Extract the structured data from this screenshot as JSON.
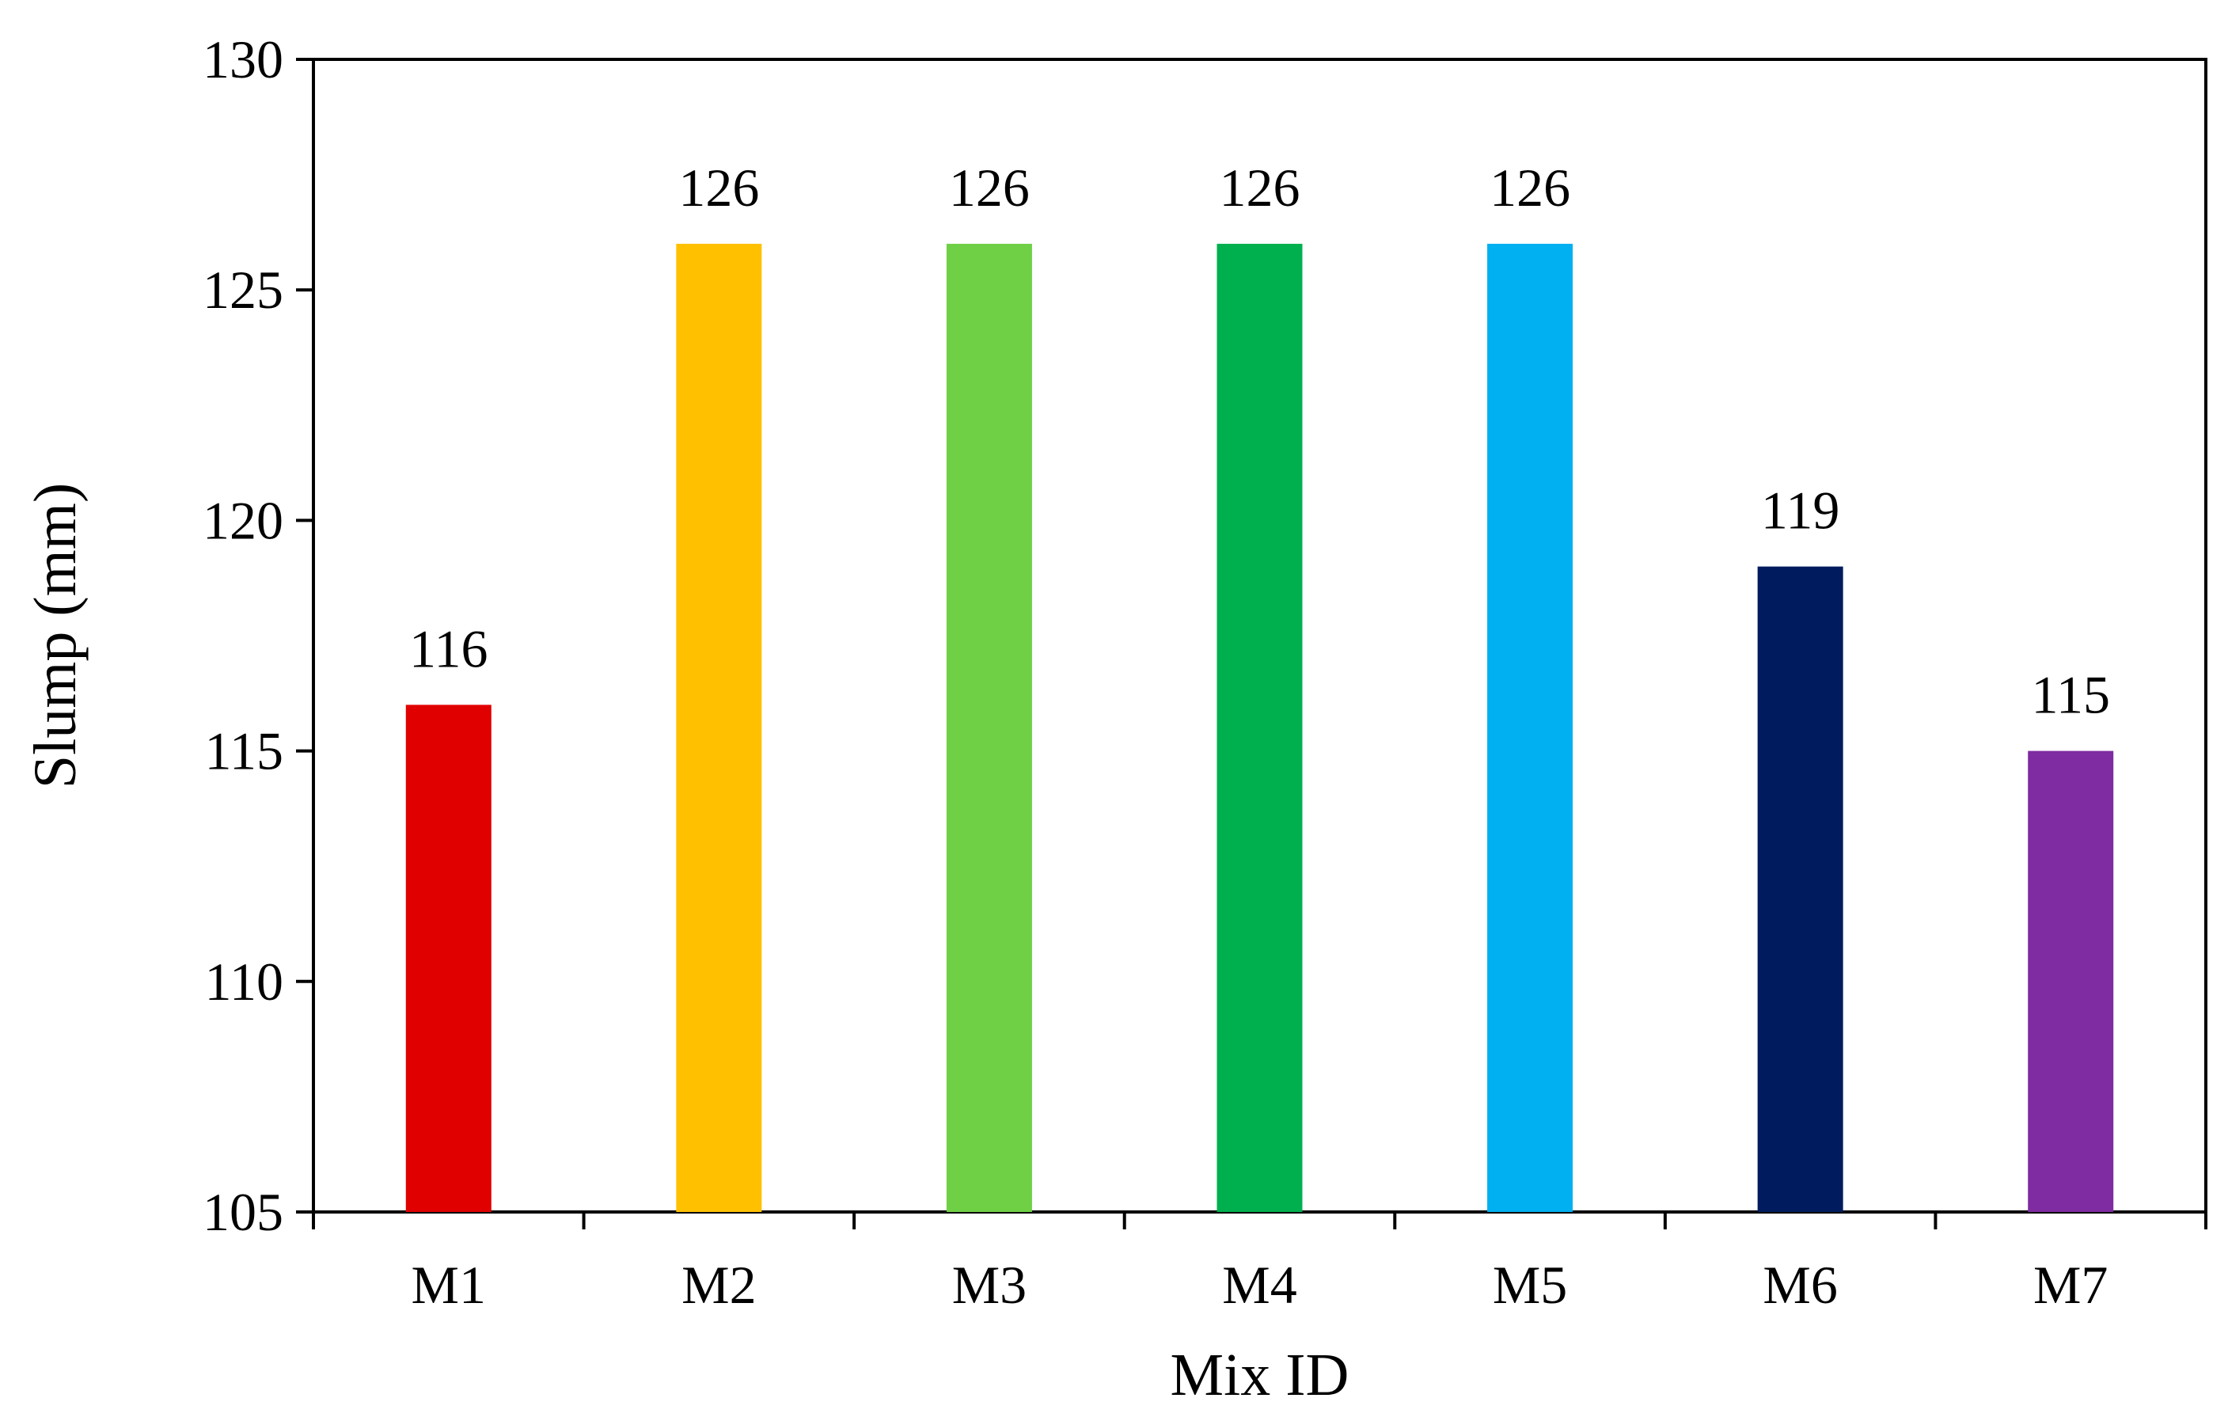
{
  "chart_data": {
    "type": "bar",
    "title": "",
    "xlabel": "Mix ID",
    "ylabel": "Slump (mm)",
    "categories": [
      "M1",
      "M2",
      "M3",
      "M4",
      "M5",
      "M6",
      "M7"
    ],
    "values": [
      116,
      126,
      126,
      126,
      126,
      119,
      115
    ],
    "data_labels": [
      "116",
      "126",
      "126",
      "126",
      "126",
      "119",
      "115"
    ],
    "colors": [
      "#e00000",
      "#ffc000",
      "#6fd046",
      "#00b04f",
      "#00b0f0",
      "#001c5e",
      "#7f2ba1"
    ],
    "ylim": [
      105,
      130
    ],
    "yticks": [
      105,
      110,
      115,
      120,
      125,
      130
    ],
    "ytick_labels": [
      "105",
      "110",
      "115",
      "120",
      "125",
      "130"
    ],
    "grid": false,
    "legend": "none"
  }
}
